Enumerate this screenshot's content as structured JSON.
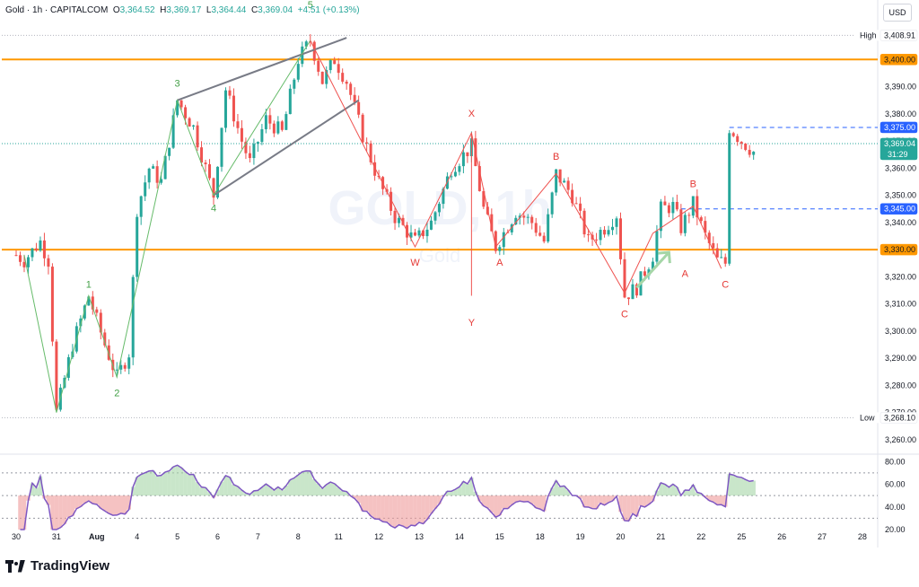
{
  "header": {
    "symbol": "Gold · 1h · CAPITALCOM",
    "open_label": "O",
    "open": "3,364.52",
    "high_label": "H",
    "high": "3,369.17",
    "low_label": "L",
    "low": "3,364.44",
    "close_label": "C",
    "close": "3,369.04",
    "change": "+4.51 (+0.13%)"
  },
  "currency_button": "USD",
  "branding": "TradingView",
  "watermark": {
    "symbol": "GOLD, 1h",
    "name": "Gold"
  },
  "chart_data": {
    "type": "candlestick",
    "y_axis": {
      "range": [
        3255,
        3412
      ],
      "ticks": [
        3260,
        3270,
        3280,
        3290,
        3300,
        3310,
        3320,
        3330,
        3340,
        3350,
        3360,
        3370,
        3380,
        3390,
        3400
      ],
      "tick_labels": [
        "3,260.00",
        "3,270.00",
        "3,280.00",
        "3,290.00",
        "3,300.00",
        "3,310.00",
        "3,320.00",
        "3,330.00",
        "3,340.00",
        "3,350.00",
        "3,360.00",
        "3,370.00",
        "3,380.00",
        "3,390.00",
        "3,400.00"
      ]
    },
    "x_axis": {
      "labels": [
        "30",
        "31",
        "Aug",
        "4",
        "5",
        "6",
        "7",
        "8",
        "11",
        "12",
        "13",
        "14",
        "15",
        "18",
        "19",
        "20",
        "21",
        "22",
        "25",
        "26",
        "27",
        "28"
      ],
      "label_bar_index": [
        0,
        10,
        20,
        30,
        40,
        50,
        60,
        70,
        80,
        90,
        100,
        110,
        120,
        130,
        140,
        150,
        160,
        170,
        180,
        190,
        200,
        210
      ]
    },
    "price_badges": [
      {
        "label": "High",
        "value": "3,408.91",
        "price": 3408.91,
        "style": "plain"
      },
      {
        "label": "",
        "value": "3,400.00",
        "price": 3400,
        "style": "orange"
      },
      {
        "label": "",
        "value": "3,375.00",
        "price": 3375,
        "style": "blue"
      },
      {
        "label": "",
        "value": "3,369.04",
        "price": 3369.04,
        "style": "green",
        "countdown": "31:29"
      },
      {
        "label": "",
        "value": "3,345.00",
        "price": 3345,
        "style": "blue"
      },
      {
        "label": "",
        "value": "3,330.00",
        "price": 3330,
        "style": "orange"
      },
      {
        "label": "Low",
        "value": "3,268.10",
        "price": 3268.1,
        "style": "plain"
      }
    ],
    "horizontal_levels": [
      {
        "price": 3400,
        "style": "solid",
        "color": "#ff9800"
      },
      {
        "price": 3330,
        "style": "solid",
        "color": "#ff9800"
      },
      {
        "price": 3375,
        "style": "dashed",
        "color": "#2962ff",
        "from_bar": 177
      },
      {
        "price": 3345,
        "style": "dashed",
        "color": "#2962ff",
        "from_bar": 165
      },
      {
        "price": 3408.91,
        "style": "dotted",
        "color": "#b2b5be"
      },
      {
        "price": 3268.1,
        "style": "dotted",
        "color": "#b2b5be"
      },
      {
        "price": 3369.04,
        "style": "dotted",
        "color": "#26a69a"
      }
    ],
    "wave_labels_green": [
      {
        "text": "1",
        "bar": 18,
        "price": 3316
      },
      {
        "text": "2",
        "bar": 25,
        "price": 3276
      },
      {
        "text": "3",
        "bar": 40,
        "price": 3390
      },
      {
        "text": "4",
        "bar": 49,
        "price": 3344
      },
      {
        "text": "5",
        "bar": 73,
        "price": 3419
      }
    ],
    "wave_labels_red": [
      {
        "text": "W",
        "bar": 99,
        "price": 3324
      },
      {
        "text": "X",
        "bar": 113,
        "price": 3379
      },
      {
        "text": "Y",
        "bar": 113,
        "price": 3302
      },
      {
        "text": "A",
        "bar": 120,
        "price": 3324
      },
      {
        "text": "B",
        "bar": 134,
        "price": 3363
      },
      {
        "text": "C",
        "bar": 151,
        "price": 3305
      },
      {
        "text": "B",
        "bar": 168,
        "price": 3353
      },
      {
        "text": "A",
        "bar": 166,
        "price": 3320
      },
      {
        "text": "C",
        "bar": 176,
        "price": 3316
      }
    ],
    "green_wave_path": [
      [
        2,
        3328
      ],
      [
        10,
        3270
      ],
      [
        18,
        3313
      ],
      [
        25,
        3283
      ],
      [
        40,
        3385
      ],
      [
        49,
        3350
      ],
      [
        73,
        3407
      ]
    ],
    "red_wave_path": [
      [
        73,
        3407
      ],
      [
        99,
        3331
      ],
      [
        113,
        3373
      ],
      [
        119,
        3331
      ],
      [
        134,
        3358
      ],
      [
        151,
        3314
      ],
      [
        158,
        3336
      ],
      [
        168,
        3346
      ],
      [
        175,
        3323
      ]
    ],
    "wedge_lines": [
      {
        "from": [
          40,
          3385
        ],
        "to": [
          82,
          3408
        ]
      },
      {
        "from": [
          49,
          3350
        ],
        "to": [
          85,
          3385
        ]
      }
    ],
    "y_line": {
      "bar": 113,
      "from_price": 3373,
      "to_price": 3313
    },
    "green_arrow": {
      "from": [
        154,
        3316
      ],
      "to": [
        162,
        3329
      ]
    },
    "rsi": {
      "range": [
        20,
        85
      ],
      "levels": [
        70,
        50,
        30
      ],
      "tick_labels": [
        "80.00",
        "60.00",
        "40.00",
        "20.00"
      ],
      "ticks": [
        80,
        60,
        40,
        20
      ]
    }
  }
}
